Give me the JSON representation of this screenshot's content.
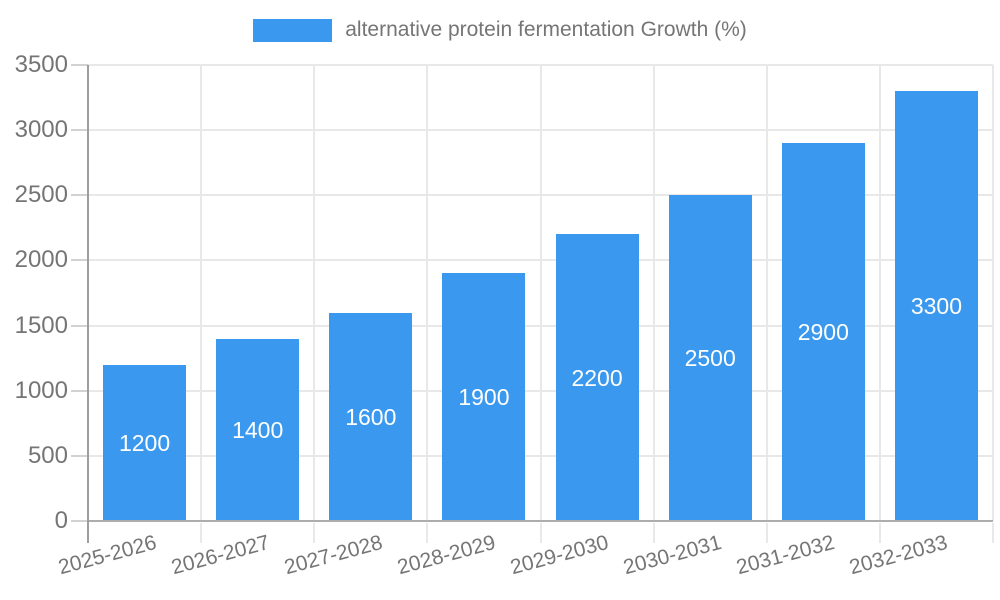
{
  "chart_data": {
    "type": "bar",
    "legend": "alternative protein fermentation Growth (%)",
    "legend_position": "top-center",
    "categories": [
      "2025-2026",
      "2026-2027",
      "2027-2028",
      "2028-2029",
      "2029-2030",
      "2030-2031",
      "2031-2032",
      "2032-2033"
    ],
    "values": [
      1200,
      1400,
      1600,
      1900,
      2200,
      2500,
      2900,
      3300
    ],
    "bar_labels": [
      "1200",
      "1400",
      "1600",
      "1900",
      "2200",
      "2500",
      "2900",
      "3300"
    ],
    "xlabel": "",
    "ylabel": "",
    "ylim": [
      0,
      3500
    ],
    "ytick_step": 500,
    "yticks": [
      "0",
      "500",
      "1000",
      "1500",
      "2000",
      "2500",
      "3000",
      "3500"
    ],
    "grid": true,
    "x_label_rotation_deg": -15,
    "colors": {
      "bar": "#3a99ee",
      "grid": "#e8e8e8",
      "baseline": "#adadad",
      "axis": "#9e9e9e",
      "tick": "#d2d2d2",
      "text": "#757575",
      "bar_label": "#ffffff"
    }
  }
}
